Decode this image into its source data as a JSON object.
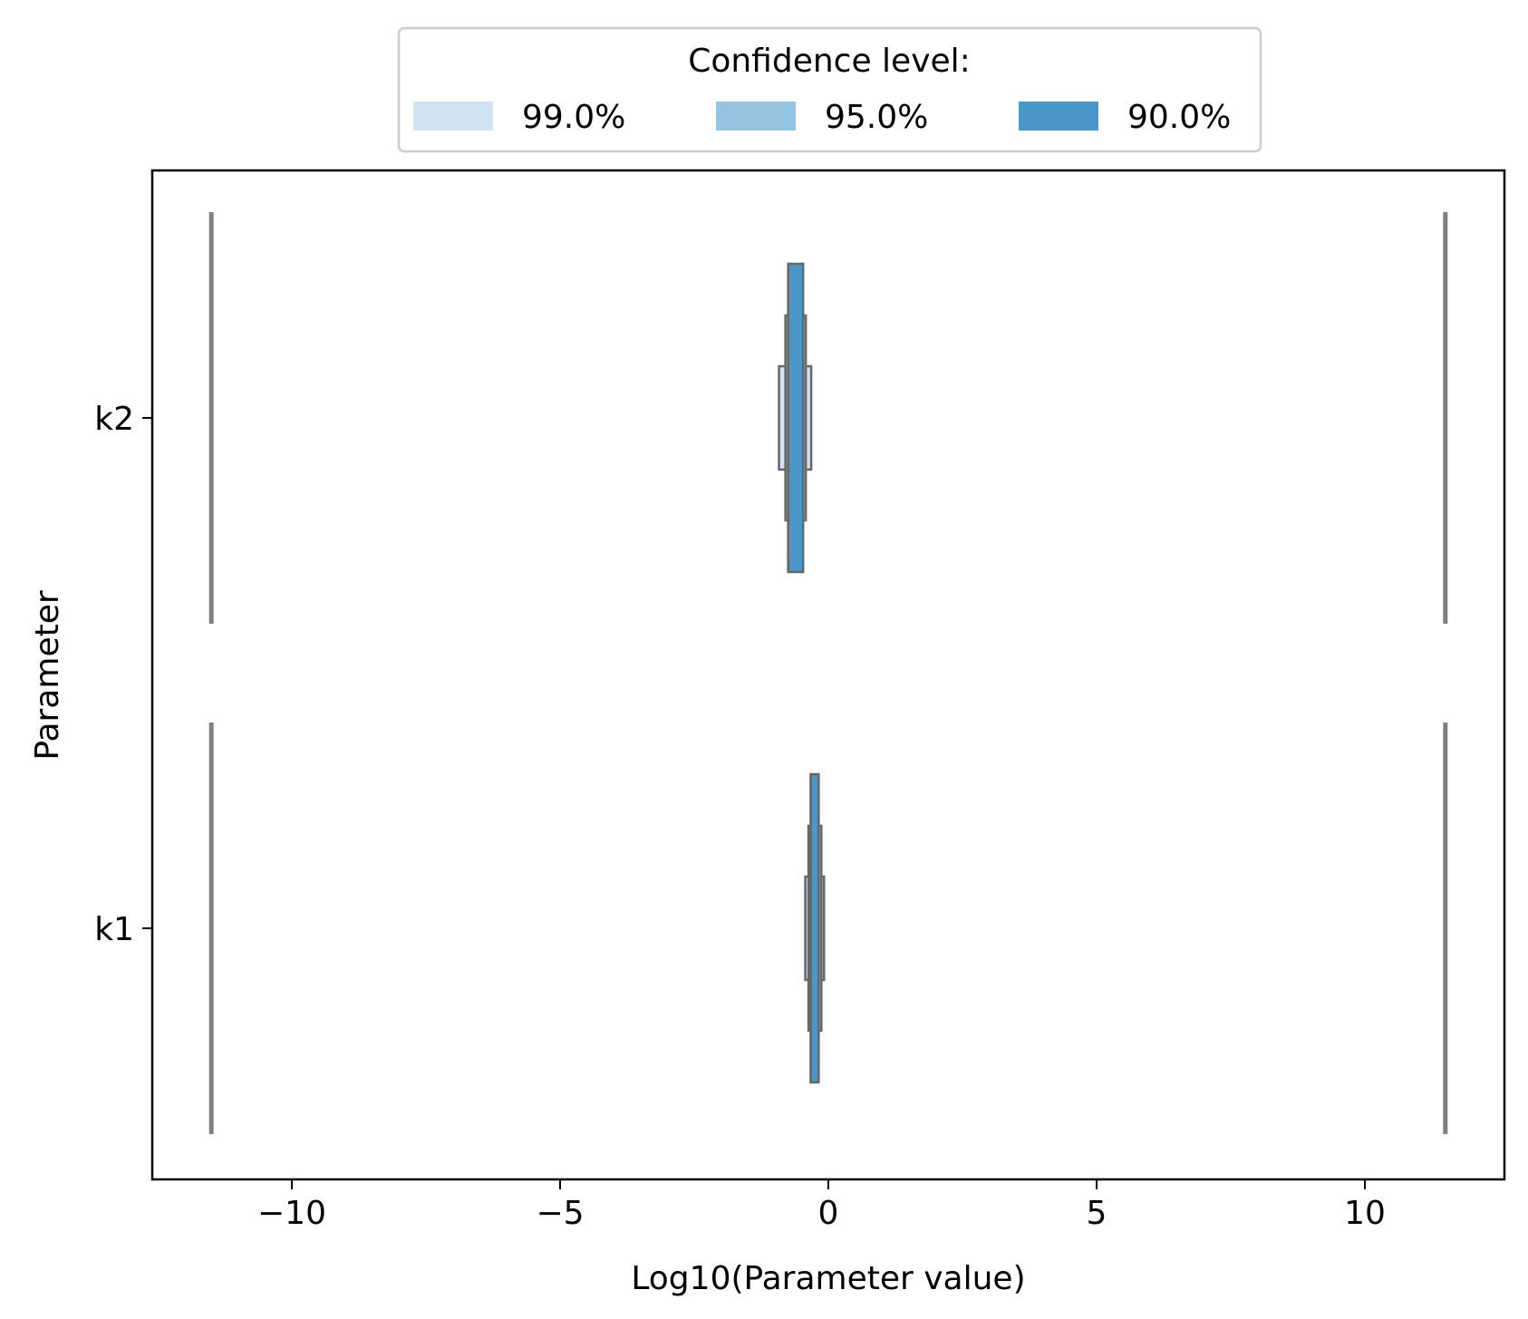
{
  "chart_data": {
    "type": "confidence-interval",
    "title": "",
    "xlabel": "Log10(Parameter value)",
    "ylabel": "Parameter",
    "xlim": [
      -12.6,
      12.6
    ],
    "xticks": [
      -10,
      -5,
      0,
      5,
      10
    ],
    "xtick_labels": [
      "−10",
      "−5",
      "0",
      "5",
      "10"
    ],
    "categories": [
      "k2",
      "k1"
    ],
    "bounds": [
      -11.5,
      11.5
    ],
    "legend": {
      "title": "Confidence level:",
      "placement": "top-center",
      "entries": [
        {
          "label": "99.0%",
          "color": "#d1e3f2"
        },
        {
          "label": "95.0%",
          "color": "#95c4e1"
        },
        {
          "label": "90.0%",
          "color": "#4a98c9"
        }
      ]
    },
    "intervals": [
      {
        "parameter": "k2",
        "levels": [
          {
            "level": "99.0%",
            "lower": -0.92,
            "upper": -0.32
          },
          {
            "level": "95.0%",
            "lower": -0.8,
            "upper": -0.42
          },
          {
            "level": "90.0%",
            "lower": -0.75,
            "upper": -0.47
          }
        ]
      },
      {
        "parameter": "k1",
        "levels": [
          {
            "level": "99.0%",
            "lower": -0.43,
            "upper": -0.08
          },
          {
            "level": "95.0%",
            "lower": -0.37,
            "upper": -0.13
          },
          {
            "level": "90.0%",
            "lower": -0.33,
            "upper": -0.18
          }
        ]
      }
    ],
    "colors": {
      "edge": "#666666",
      "bound_line": "#808080",
      "axis": "#000000"
    }
  }
}
